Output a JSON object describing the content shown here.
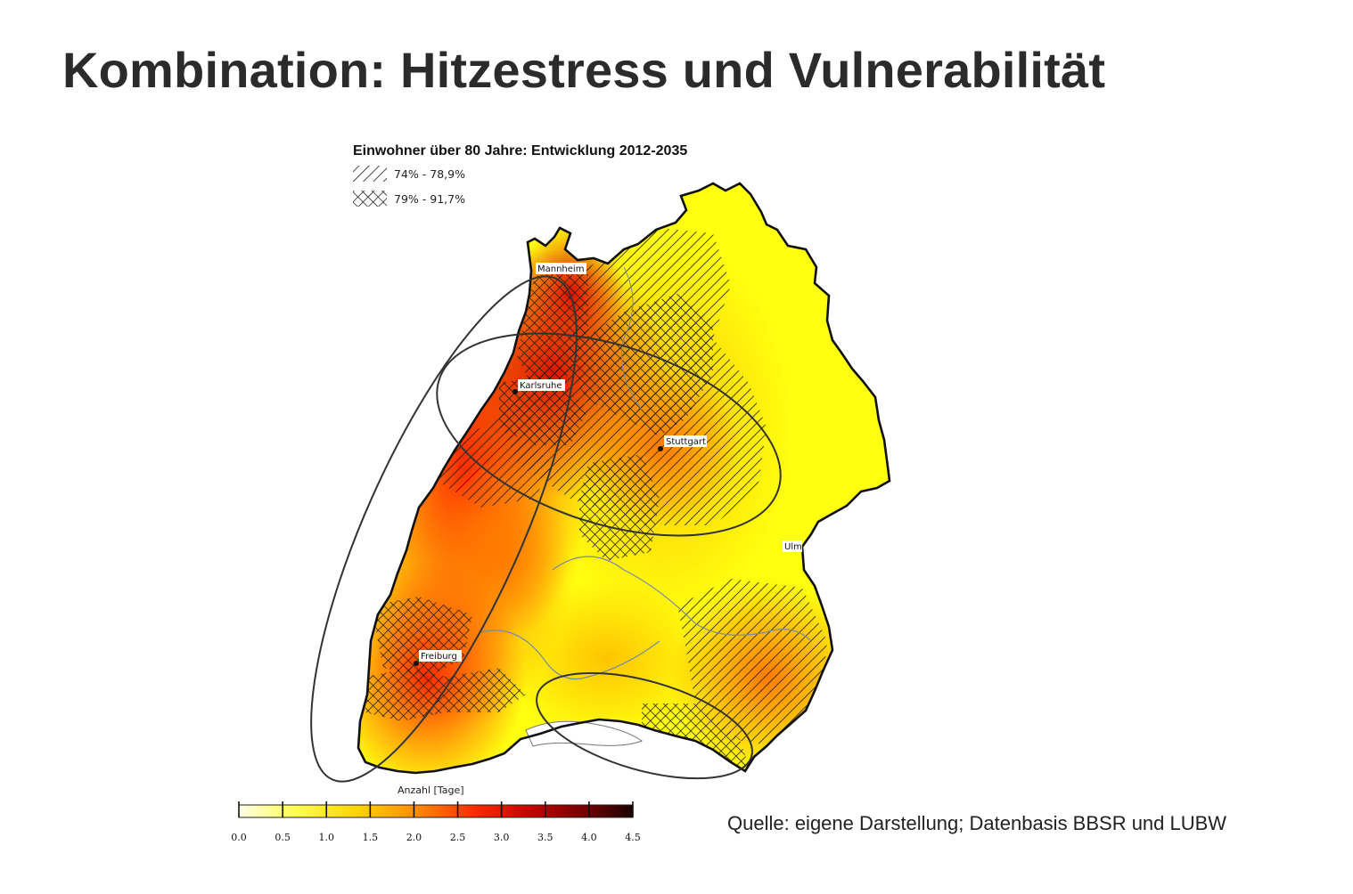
{
  "slide": {
    "title": "Kombination: Hitzestress und Vulnerabilität",
    "source": "Quelle: eigene Darstellung; Datenbasis BBSR und LUBW"
  },
  "legend": {
    "title": "Einwohner über 80 Jahre: Entwicklung 2012-2035",
    "items": [
      {
        "label": "74% - 78,9%",
        "pattern": "diagonal-hatch"
      },
      {
        "label": "79% - 91,7%",
        "pattern": "cross-hatch"
      }
    ]
  },
  "cities": [
    {
      "name": "Mannheim"
    },
    {
      "name": "Karlsruhe"
    },
    {
      "name": "Stuttgart"
    },
    {
      "name": "Ulm"
    },
    {
      "name": "Freiburg"
    }
  ],
  "colorbar": {
    "title": "Anzahl [Tage]",
    "ticks": [
      "0.0",
      "0.5",
      "1.0",
      "1.5",
      "2.0",
      "2.5",
      "3.0",
      "3.5",
      "4.0",
      "4.5"
    ],
    "range": [
      0.0,
      4.5
    ],
    "colors": [
      "#fffde8",
      "#ffff55",
      "#ffd400",
      "#ff8c00",
      "#ff2a00",
      "#c40000",
      "#7a0000",
      "#1a0000"
    ]
  }
}
